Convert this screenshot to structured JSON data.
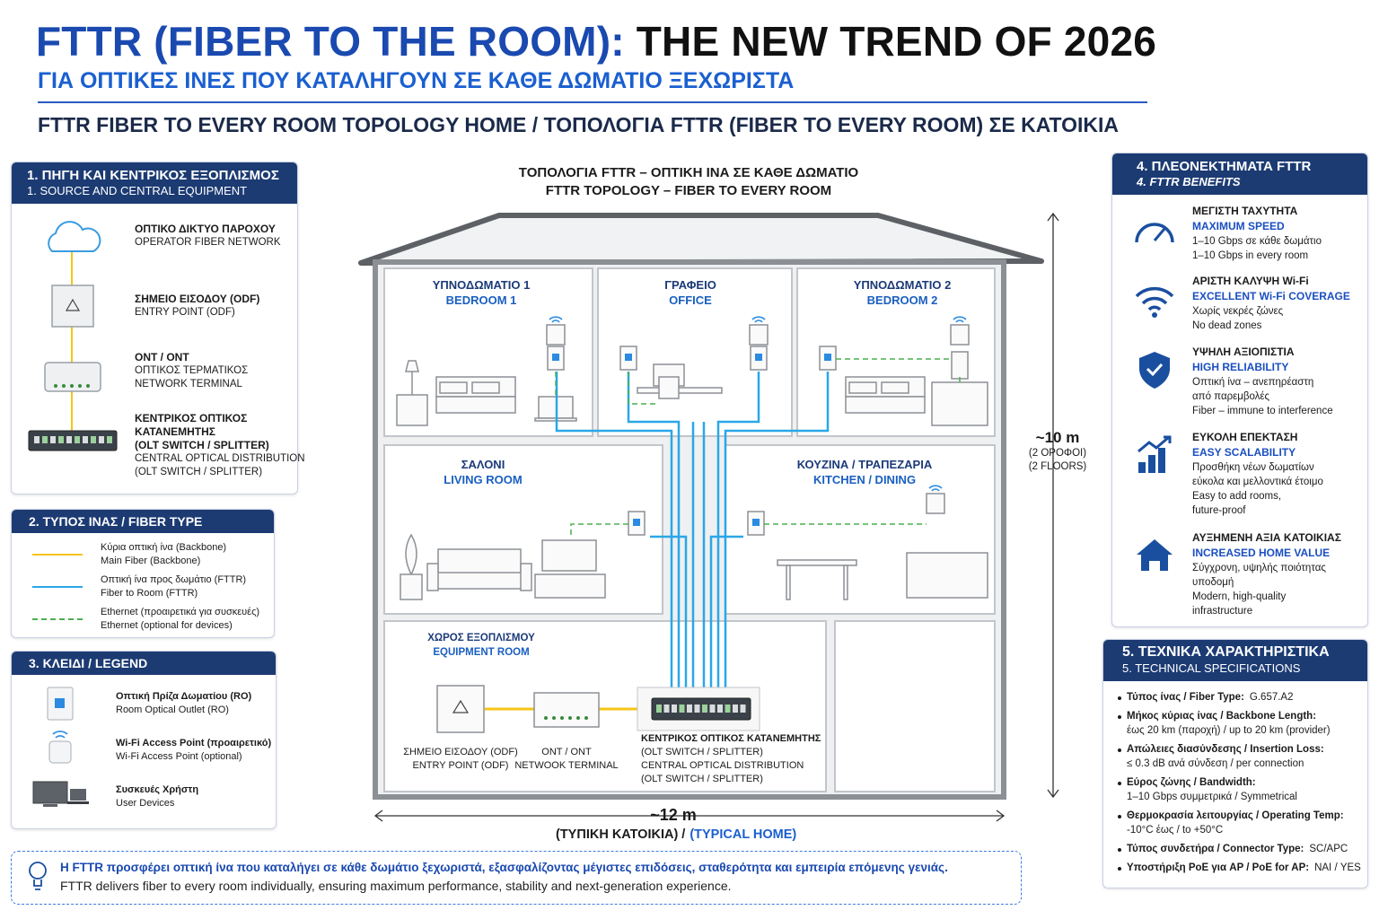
{
  "header": {
    "title_blue": "FTTR (FIBER TO THE ROOM):",
    "title_black": "THE NEW TREND OF 2026",
    "subtitle": "ΓΙΑ ΟΠΤΙΚΕΣ ΙΝΕΣ ΠΟΥ ΚΑΤΑΛΗΓΟΥΝ ΣΕ ΚΑΘΕ ΔΩΜΑΤΙΟ ΞΕΧΩΡΙΣΤΑ",
    "section": "FTTR FIBER TO EVERY ROOM TOPOLOGY HOME / ΤΟΠΟΛΟΓΙΑ FTTR (FIBER TO EVERY ROOM) ΣΕ ΚΑΤΟΙΚΙΑ"
  },
  "source": {
    "title_el": "1. ΠΗΓΗ ΚΑΙ ΚΕΝΤΡΙΚΟΣ ΕΞΟΠΛΙΣΜΟΣ",
    "title_en": "1. SOURCE AND CENTRAL EQUIPMENT",
    "items": [
      {
        "bold": [
          "ΟΠΤΙΚΟ ΔΙΚΤΥΟ ΠΑΡΟΧΟΥ"
        ],
        "lines": [
          "OPERATOR FIBER NETWORK"
        ]
      },
      {
        "bold": [
          "ΣΗΜΕΙΟ ΕΙΣΟΔΟΥ (ODF)"
        ],
        "lines": [
          "ENTRY POINT (ODF)"
        ]
      },
      {
        "bold": [
          "ONT / ONT"
        ],
        "lines": [
          "ΟΠΤΙΚΟΣ ΤΕΡΜΑΤΙΚΟΣ",
          "NETWORK TERMINAL"
        ]
      },
      {
        "bold": [
          "ΚΕΝΤΡΙΚΟΣ ΟΠΤΙΚΟΣ",
          "ΚΑΤΑΝΕΜΗΤΗΣ",
          "(OLT SWITCH / SPLITTER)"
        ],
        "lines": [
          "CENTRAL OPTICAL DISTRIBUTION",
          "(OLT SWITCH / SPLITTER)"
        ]
      }
    ]
  },
  "fiber": {
    "title": "2. ΤΥΠΟΣ ΙΝΑΣ / FIBER TYPE",
    "items": [
      {
        "el": "Κύρια οπτική ίνα (Backbone)",
        "en": "Main Fiber (Backbone)",
        "color": "#f5c518",
        "style": "solid"
      },
      {
        "el": "Οπτική ίνα προς δωμάτιο (FTTR)",
        "en": "Fiber to Room (FTTR)",
        "color": "#2aa7e8",
        "style": "solid"
      },
      {
        "el": "Ethernet (προαιρετικά για συσκευές)",
        "en": "Ethernet (optional for devices)",
        "color": "#4caf50",
        "style": "dashed"
      }
    ]
  },
  "legend": {
    "title": "3. ΚΛΕΙΔΙ / LEGEND",
    "items": [
      {
        "el": "Οπτική Πρίζα Δωματίου (RO)",
        "en": "Room Optical Outlet (RO)"
      },
      {
        "el": "Wi-Fi Access Point (προαιρετικό)",
        "en": "Wi-Fi Access Point (optional)"
      },
      {
        "el": "Συσκευές Χρήστη",
        "en": "User Devices"
      }
    ]
  },
  "diagram": {
    "title_el": "ΤΟΠΟΛΟΓΙΑ FTTR – ΟΠΤΙΚΗ ΙΝΑ ΣΕ ΚΑΘΕ ΔΩΜΑΤΙΟ",
    "title_en": "FTTR TOPOLOGY – FIBER TO EVERY ROOM",
    "rooms": [
      {
        "el": "ΥΠΝΟΔΩΜΑΤΙΟ 1",
        "en": "BEDROOM 1"
      },
      {
        "el": "ΓΡΑΦΕΙΟ",
        "en": "OFFICE"
      },
      {
        "el": "ΥΠΝΟΔΩΜΑΤΙΟ 2",
        "en": "BEDROOM 2"
      },
      {
        "el": "ΣΑΛΟΝΙ",
        "en": "LIVING ROOM"
      },
      {
        "el": "ΚΟΥΖΙΝΑ / ΤΡΑΠΕΖΑΡΙΑ",
        "en": "KITCHEN / DINING"
      },
      {
        "el": "ΧΩΡΟΣ ΕΞΟΠΛΙΣΜΟΥ",
        "en": "EQUIPMENT ROOM"
      }
    ],
    "equipment": [
      {
        "lines": [
          "ΣΗΜΕΙΟ ΕΙΣΟΔΟΥ (ODF)",
          "ENTRY POINT (ODF)"
        ]
      },
      {
        "lines": [
          "ONT / ONT",
          "NETWOOK TERMINAL"
        ]
      },
      {
        "lines": [
          "ΚΕΝΤΡΙΚΟΣ ΟΠΤΙΚΟΣ ΚΑΤΑΝΕΜΗΤΗΣ",
          "(OLT SWITCH / SPLITTER)",
          "CENTRAL OPTICAL DISTRIBUTION",
          "(OLT SWITCH / SPLITTER)"
        ]
      }
    ],
    "height": "~10 m",
    "height_el": "(2 ΟΡΟΦΟΙ)",
    "height_en": "(2 FLOORS)",
    "width": "~12 m",
    "width_el": "(ΤΥΠΙΚΗ ΚΑΤΟΙΚΙΑ) /",
    "width_en": "(TYPICAL HOME)"
  },
  "benefits": {
    "title_el": "4. ΠΛΕΟΝΕΚΤΗΜΑΤΑ FTTR",
    "title_en": "4. FTTR BENEFITS",
    "items": [
      {
        "el": "ΜΕΓΙΣΤΗ ΤΑΧΥΤΗΤΑ",
        "en": "MAXIMUM SPEED",
        "lines": [
          "1–10 Gbps σε κάθε δωμάτιο",
          "1–10 Gbps in every room"
        ]
      },
      {
        "el": "ΑΡΙΣΤΗ ΚΑΛΥΨΗ Wi-Fi",
        "en": "EXCELLENT Wi-Fi COVERAGE",
        "lines": [
          "Χωρίς νεκρές ζώνες",
          "No dead zones"
        ]
      },
      {
        "el": "ΥΨΗΛΗ ΑΞΙΟΠΙΣΤΙΑ",
        "en": "HIGH RELIABILITY",
        "lines": [
          "Οπτική ίνα – ανεπηρέαστη",
          "από παρεμβολές",
          "Fiber – immune to interference"
        ]
      },
      {
        "el": "ΕΥΚΟΛΗ ΕΠΕΚΤΑΣΗ",
        "en": "EASY SCALABILITY",
        "lines": [
          "Προσθήκη νέων δωματίων",
          "εύκολα και μελλοντικά έτοιμο",
          "Easy to add rooms,",
          "future-proof"
        ]
      },
      {
        "el": "ΑΥΞΗΜΕΝΗ ΑΞΙΑ ΚΑΤΟΙΚΙΑΣ",
        "en": "INCREASED HOME VALUE",
        "lines": [
          "Σύγχρονη, υψηλής ποιότητας",
          "υποδομή",
          "Modern, high-quality",
          "infrastructure"
        ]
      }
    ]
  },
  "specs": {
    "title_el": "5. ΤΕΧΝΙΚΑ ΧΑΡΑΚΤΗΡΙΣΤΙΚΑ",
    "title_en": "5. TECHNICAL SPECIFICATIONS",
    "items": [
      {
        "label": "Τύπος ίνας / Fiber Type:",
        "value": "G.657.A2"
      },
      {
        "label": "Μήκος κύριας ίνας / Backbone Length:",
        "value": "έως 20 km (παροχή) / up to 20 km (provider)"
      },
      {
        "label": "Απώλειες διασύνδεσης / Insertion Loss:",
        "value": "≤ 0.3 dB ανά σύνδεση / per connection"
      },
      {
        "label": "Εύρος ζώνης / Bandwidth:",
        "value": "1–10 Gbps συμμετρικά / Symmetrical"
      },
      {
        "label": "Θερμοκρασία λειτουργίας / Operating Temp:",
        "value": "-10°C έως / to +50°C"
      },
      {
        "label": "Τύπος συνδετήρα / Connector Type:",
        "value": "SC/APC"
      },
      {
        "label": "Υποστήριξη PoE για AP / PoE for AP:",
        "value": "ΝΑΙ / YES"
      }
    ]
  },
  "footer": {
    "el": "Η FTTR προσφέρει οπτική ίνα που καταλήγει σε κάθε δωμάτιο ξεχωριστά, εξασφαλίζοντας μέγιστες επιδόσεις, σταθερότητα και εμπειρία επόμενης γενιάς.",
    "en": "FTTR delivers fiber to every room individually, ensuring maximum performance, stability and next-generation experience."
  }
}
